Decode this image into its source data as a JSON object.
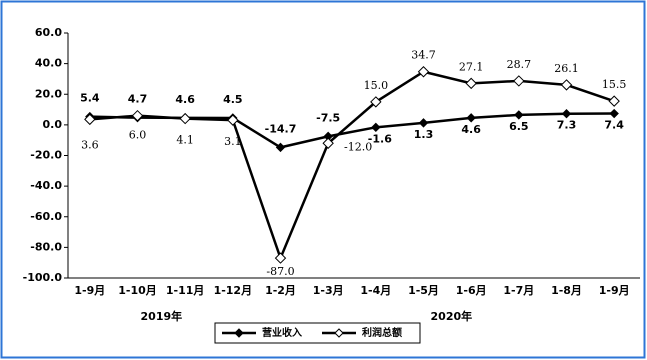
{
  "chart_data": {
    "type": "line",
    "categories": [
      "1-9月",
      "1-10月",
      "1-11月",
      "1-12月",
      "1-2月",
      "1-3月",
      "1-4月",
      "1-5月",
      "1-6月",
      "1-7月",
      "1-8月",
      "1-9月"
    ],
    "x_group_labels": [
      "2019年",
      "2020年"
    ],
    "series": [
      {
        "name": "营业收入",
        "color": "#000000",
        "marker": "filled-diamond",
        "values": [
          5.4,
          4.7,
          4.6,
          4.5,
          -14.7,
          -7.5,
          -1.6,
          1.3,
          4.6,
          6.5,
          7.3,
          7.4
        ]
      },
      {
        "name": "利润总额",
        "color": "#000000",
        "marker": "open-diamond",
        "values": [
          3.6,
          6.0,
          4.1,
          3.1,
          -87.0,
          -12.0,
          15.0,
          34.7,
          27.1,
          28.7,
          26.1,
          15.5
        ],
        "value_labels": [
          "3.6",
          "6.0",
          "4.1",
          "3.1",
          "-87.0",
          "-12.0",
          "15.0",
          "34.7",
          "27.1",
          "28.7",
          "26.1",
          "15.5"
        ]
      }
    ],
    "ylim": [
      -100,
      60
    ],
    "yticks": [
      {
        "value": -100,
        "label": "-100.0"
      },
      {
        "value": -80,
        "label": "-80.0"
      },
      {
        "value": -60,
        "label": "-60.0"
      },
      {
        "value": -40,
        "label": "-40.0"
      },
      {
        "value": -20,
        "label": "-20.0"
      },
      {
        "value": 0,
        "label": "0.0"
      },
      {
        "value": 20,
        "label": "20.0"
      },
      {
        "value": 40,
        "label": "40.0"
      },
      {
        "value": 60,
        "label": "60.0"
      }
    ],
    "grid": false,
    "legend": "bottom"
  }
}
